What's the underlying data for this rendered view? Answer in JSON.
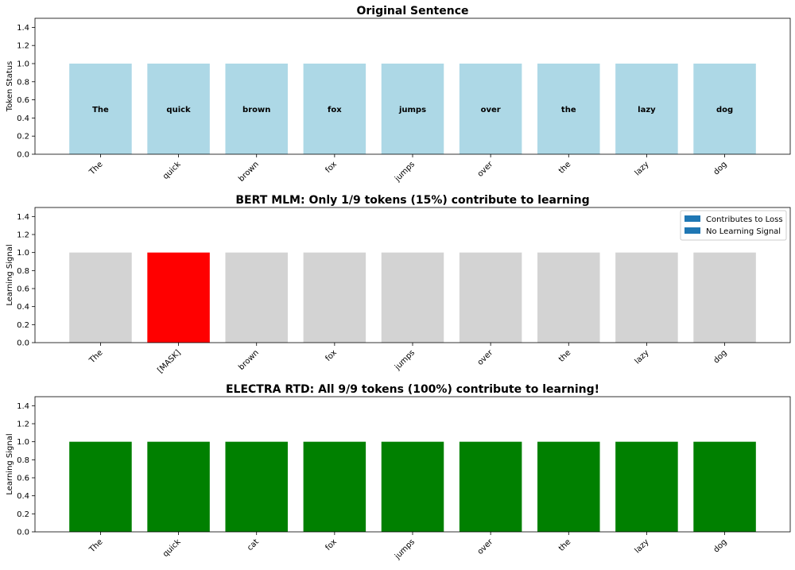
{
  "chart_data": [
    {
      "type": "bar",
      "title": "Original Sentence",
      "ylabel": "Token Status",
      "ylim": [
        0,
        1.5
      ],
      "yticks": [
        "0.0",
        "0.2",
        "0.4",
        "0.6",
        "0.8",
        "1.0",
        "1.2",
        "1.4"
      ],
      "categories": [
        "The",
        "quick",
        "brown",
        "fox",
        "jumps",
        "over",
        "the",
        "lazy",
        "dog"
      ],
      "values": [
        1,
        1,
        1,
        1,
        1,
        1,
        1,
        1,
        1
      ],
      "colors": [
        "#add8e6",
        "#add8e6",
        "#add8e6",
        "#add8e6",
        "#add8e6",
        "#add8e6",
        "#add8e6",
        "#add8e6",
        "#add8e6"
      ],
      "bar_labels": [
        "The",
        "quick",
        "brown",
        "fox",
        "jumps",
        "over",
        "the",
        "lazy",
        "dog"
      ]
    },
    {
      "type": "bar",
      "title": "BERT MLM: Only 1/9 tokens (15%) contribute to learning",
      "ylabel": "Learning Signal",
      "ylim": [
        0,
        1.5
      ],
      "yticks": [
        "0.0",
        "0.2",
        "0.4",
        "0.6",
        "0.8",
        "1.0",
        "1.2",
        "1.4"
      ],
      "categories": [
        "The",
        "[MASK]",
        "brown",
        "fox",
        "jumps",
        "over",
        "the",
        "lazy",
        "dog"
      ],
      "values": [
        1,
        1,
        1,
        1,
        1,
        1,
        1,
        1,
        1
      ],
      "colors": [
        "#d3d3d3",
        "#ff0000",
        "#d3d3d3",
        "#d3d3d3",
        "#d3d3d3",
        "#d3d3d3",
        "#d3d3d3",
        "#d3d3d3",
        "#d3d3d3"
      ],
      "legend": {
        "placement": "top-right",
        "entries": [
          {
            "label": "Contributes to Loss",
            "color": "#1f77b4"
          },
          {
            "label": "No Learning Signal",
            "color": "#1f77b4"
          }
        ]
      }
    },
    {
      "type": "bar",
      "title": "ELECTRA RTD: All 9/9 tokens (100%) contribute to learning!",
      "ylabel": "Learning Signal",
      "ylim": [
        0,
        1.5
      ],
      "yticks": [
        "0.0",
        "0.2",
        "0.4",
        "0.6",
        "0.8",
        "1.0",
        "1.2",
        "1.4"
      ],
      "categories": [
        "The",
        "quick",
        "cat",
        "fox",
        "jumps",
        "over",
        "the",
        "lazy",
        "dog"
      ],
      "values": [
        1,
        1,
        1,
        1,
        1,
        1,
        1,
        1,
        1
      ],
      "colors": [
        "#008000",
        "#008000",
        "#008000",
        "#008000",
        "#008000",
        "#008000",
        "#008000",
        "#008000",
        "#008000"
      ]
    }
  ]
}
